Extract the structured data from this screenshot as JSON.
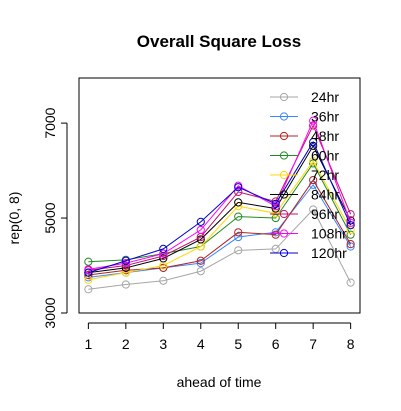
{
  "chart_data": {
    "type": "line",
    "title": "Overall Square Loss",
    "xlabel": "ahead of time",
    "ylabel": "rep(0, 8)",
    "x": [
      1,
      2,
      3,
      4,
      5,
      6,
      7,
      8
    ],
    "xticks": [
      "1",
      "2",
      "3",
      "4",
      "5",
      "6",
      "7",
      "8"
    ],
    "yticks": [
      "3000",
      "5000",
      "7000"
    ],
    "xlim": [
      0.75,
      8.25
    ],
    "ylim": [
      3000,
      7950
    ],
    "legend_position": "top-right",
    "series": [
      {
        "name": "24hr",
        "color": "#a6a6a6",
        "values": [
          3500,
          3600,
          3680,
          3880,
          4320,
          4350,
          5180,
          3640
        ]
      },
      {
        "name": "36hr",
        "color": "#3a86ff",
        "values": [
          3750,
          3850,
          3950,
          4050,
          4600,
          4700,
          5700,
          4400
        ]
      },
      {
        "name": "48hr",
        "color": "#b22222",
        "values": [
          3800,
          3900,
          3950,
          4100,
          4700,
          4650,
          5800,
          4450
        ]
      },
      {
        "name": "60hr",
        "color": "#228b22",
        "values": [
          4080,
          4120,
          4250,
          4400,
          5030,
          5000,
          6150,
          4650
        ]
      },
      {
        "name": "72hr",
        "color": "#ffd700",
        "values": [
          3700,
          3850,
          4000,
          4400,
          5250,
          5100,
          6200,
          4750
        ]
      },
      {
        "name": "84hr",
        "color": "#000000",
        "values": [
          3850,
          3950,
          4150,
          4550,
          5330,
          5200,
          6520,
          4950
        ]
      },
      {
        "name": "96hr",
        "color": "#c0136e",
        "values": [
          3900,
          4000,
          4200,
          4600,
          5550,
          5350,
          6950,
          5080
        ]
      },
      {
        "name": "108hr",
        "color": "#ff00ff",
        "values": [
          3920,
          4050,
          4250,
          4750,
          5680,
          5250,
          7050,
          4900
        ]
      },
      {
        "name": "120hr",
        "color": "#0000cd",
        "values": [
          3850,
          4100,
          4350,
          4920,
          5650,
          5300,
          6600,
          4850
        ]
      }
    ]
  }
}
